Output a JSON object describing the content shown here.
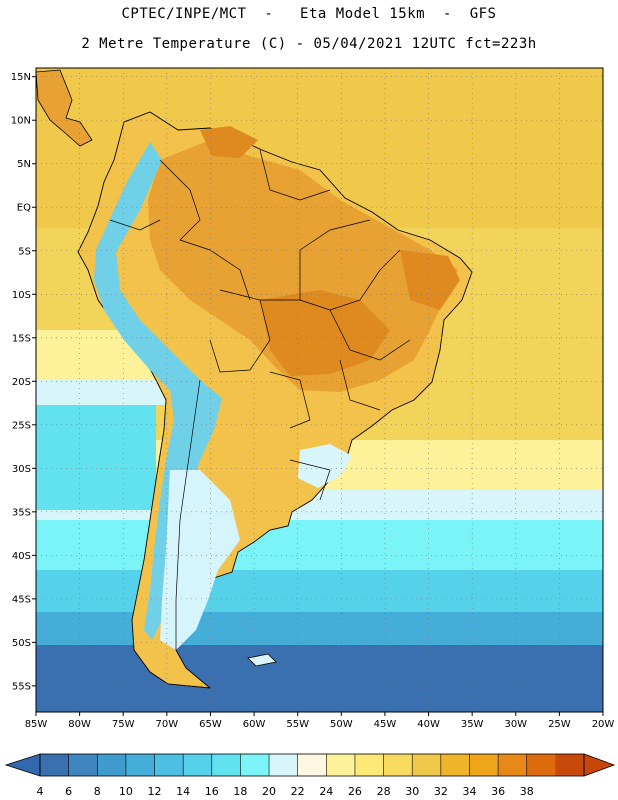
{
  "header": {
    "line1": "CPTEC/INPE/MCT  -   Eta Model 15km  -  GFS",
    "line2": "2 Metre Temperature (C) - 05/04/2021 12UTC fct=223h"
  },
  "map": {
    "lat_ticks": [
      "15N",
      "10N",
      "5N",
      "EQ",
      "5S",
      "10S",
      "15S",
      "20S",
      "25S",
      "30S",
      "35S",
      "40S",
      "45S",
      "50S",
      "55S"
    ],
    "lon_ticks": [
      "85W",
      "80W",
      "75W",
      "70W",
      "65W",
      "60W",
      "55W",
      "50W",
      "45W",
      "40W",
      "35W",
      "30W",
      "25W",
      "20W"
    ],
    "lon_range": [
      -85,
      -20
    ],
    "lat_range": [
      -58,
      16
    ],
    "colors": {
      "ocean_cold": "#2f6fb0",
      "ocean_mid": "#4ab0d6",
      "ocean_cool": "#5fd6ea",
      "ocean_warm": "#f3d45a",
      "land_hot": "#e8a133",
      "land_warm": "#f2c24a",
      "andes": "#6fd0e8",
      "patagonia": "#d6f4fb",
      "border": "#000000",
      "grid": "#777777"
    }
  },
  "colorbar": {
    "labels": [
      "4",
      "6",
      "8",
      "10",
      "12",
      "14",
      "16",
      "18",
      "20",
      "22",
      "24",
      "26",
      "28",
      "30",
      "32",
      "34",
      "36",
      "38"
    ],
    "colors": [
      "#3a6fb0",
      "#3f86c0",
      "#3f9ccc",
      "#45aed8",
      "#4cc0e2",
      "#55d2ea",
      "#62e2ef",
      "#7af4f6",
      "#d8f6fa",
      "#fdf6e0",
      "#fdf29a",
      "#fde878",
      "#f8da5e",
      "#f0c84a",
      "#f0b42a",
      "#eea51a",
      "#e88818",
      "#de6a0e",
      "#c84a0a"
    ],
    "arrow_left_color": "#3168b0",
    "arrow_right_color": "#c8460a"
  }
}
